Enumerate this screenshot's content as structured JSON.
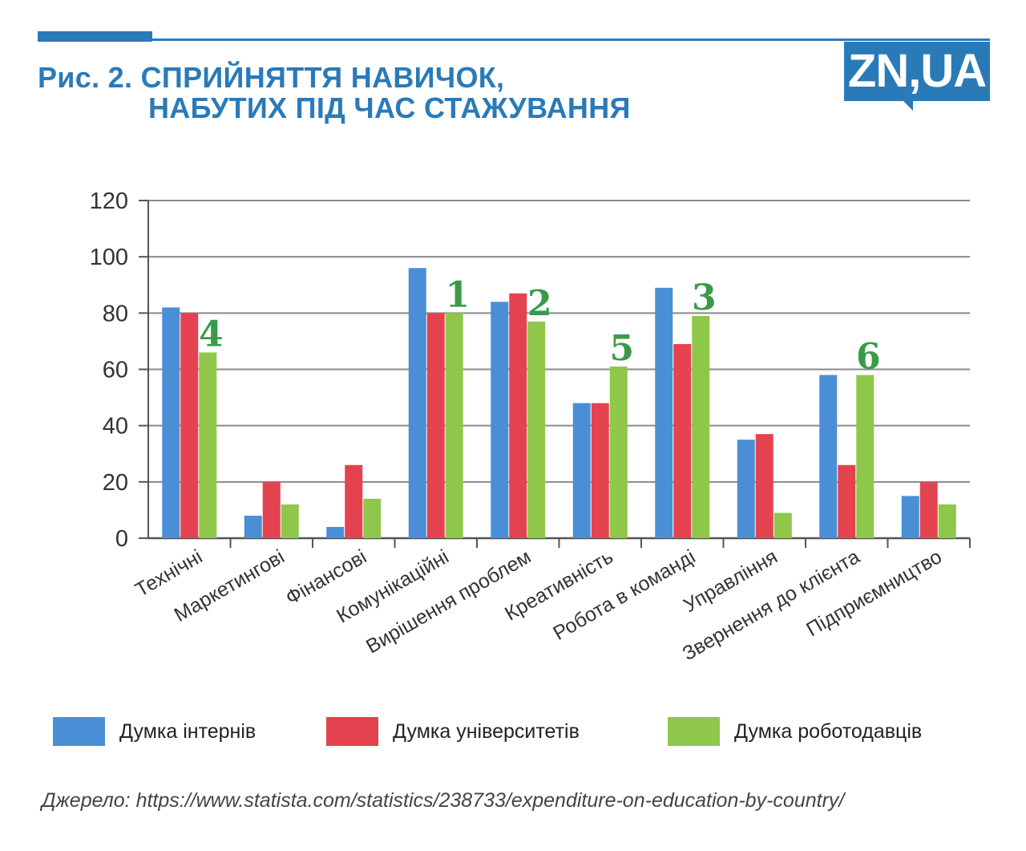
{
  "header": {
    "title_line1": "Рис. 2. СПРИЙНЯТТЯ НАВИЧОК,",
    "title_line2": "НАБУТИХ ПІД ЧАС СТАЖУВАННЯ",
    "logo": "ZN,UA"
  },
  "colors": {
    "interns": "#4a8fd6",
    "universities": "#e5424f",
    "employers": "#8fc74a",
    "brand": "#2a7ab8",
    "rank": "#3a9a4a"
  },
  "chart_data": {
    "type": "bar",
    "title": "Рис. 2. Сприйняття навичок, набутих під час стажування",
    "xlabel": "",
    "ylabel": "",
    "ylim": [
      0,
      120
    ],
    "yticks": [
      0,
      20,
      40,
      60,
      80,
      100,
      120
    ],
    "grid": true,
    "legend_position": "bottom",
    "categories": [
      "Технічні",
      "Маркетингові",
      "Фінансові",
      "Комунікаційні",
      "Вирішення проблем",
      "Креативність",
      "Робота в команді",
      "Управління",
      "Звернення до клієнта",
      "Підприємництво"
    ],
    "series": [
      {
        "name": "Думка інтернів",
        "values": [
          82,
          8,
          4,
          96,
          84,
          48,
          89,
          35,
          58,
          15
        ]
      },
      {
        "name": "Думка університетів",
        "values": [
          80,
          20,
          26,
          80,
          87,
          48,
          69,
          37,
          26,
          20
        ]
      },
      {
        "name": "Думка роботодавців",
        "values": [
          66,
          12,
          14,
          80,
          77,
          61,
          79,
          9,
          58,
          12
        ]
      }
    ],
    "annotations": [
      {
        "category": "Технічні",
        "text": "4"
      },
      {
        "category": "Комунікаційні",
        "text": "1"
      },
      {
        "category": "Вирішення проблем",
        "text": "2"
      },
      {
        "category": "Креативність",
        "text": "5"
      },
      {
        "category": "Робота в команді",
        "text": "3"
      },
      {
        "category": "Звернення до клієнта",
        "text": "6"
      }
    ]
  },
  "source": "Джерело:  https://www.statista.com/statistics/238733/expenditure-on-education-by-country/"
}
